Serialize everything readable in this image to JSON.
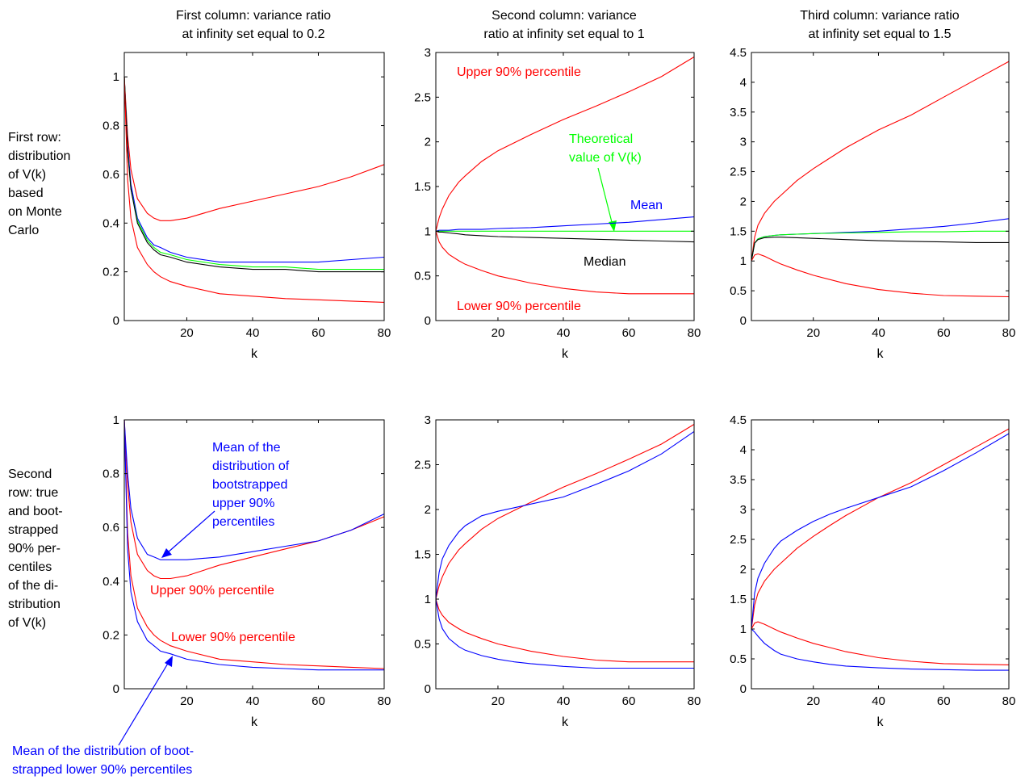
{
  "row_labels": [
    [
      "First row:",
      "distribution",
      "of V(k)",
      "based",
      "on Monte",
      "Carlo"
    ],
    [
      "Second",
      "row: true",
      "and boot-",
      "strapped",
      "90% per-",
      "centiles",
      "of the di-",
      "stribution",
      "of V(k)"
    ]
  ],
  "colors": {
    "red": "#ff0000",
    "blue": "#0000ff",
    "green": "#00ff00",
    "black": "#000000"
  },
  "chart_data": [
    {
      "type": "line",
      "row": 1,
      "col": 1,
      "title": [
        "First column: variance ratio",
        "at infinity set equal to 0.2"
      ],
      "xlabel": "k",
      "xlim": [
        1,
        80
      ],
      "ylim": [
        0,
        1.1
      ],
      "xticks": [
        20,
        40,
        60,
        80
      ],
      "yticks": [
        0,
        0.2,
        0.4,
        0.6,
        0.8,
        1
      ],
      "x": [
        1,
        2,
        3,
        5,
        8,
        10,
        12,
        15,
        20,
        30,
        40,
        50,
        60,
        70,
        80
      ],
      "series": [
        {
          "color": "red",
          "values": [
            1.0,
            0.76,
            0.62,
            0.5,
            0.44,
            0.42,
            0.41,
            0.41,
            0.42,
            0.46,
            0.49,
            0.52,
            0.55,
            0.59,
            0.64
          ]
        },
        {
          "color": "blue",
          "values": [
            1.0,
            0.72,
            0.56,
            0.42,
            0.34,
            0.31,
            0.3,
            0.28,
            0.26,
            0.24,
            0.24,
            0.24,
            0.24,
            0.25,
            0.26
          ]
        },
        {
          "color": "green",
          "values": [
            1.0,
            0.7,
            0.54,
            0.41,
            0.33,
            0.3,
            0.28,
            0.27,
            0.25,
            0.23,
            0.22,
            0.22,
            0.21,
            0.21,
            0.21
          ]
        },
        {
          "color": "black",
          "values": [
            1.0,
            0.7,
            0.54,
            0.4,
            0.32,
            0.29,
            0.27,
            0.26,
            0.24,
            0.22,
            0.21,
            0.21,
            0.2,
            0.2,
            0.2
          ]
        },
        {
          "color": "red",
          "values": [
            1.0,
            0.58,
            0.42,
            0.3,
            0.23,
            0.2,
            0.18,
            0.16,
            0.14,
            0.11,
            0.1,
            0.09,
            0.085,
            0.08,
            0.075
          ]
        }
      ],
      "annotations": []
    },
    {
      "type": "line",
      "row": 1,
      "col": 2,
      "title": [
        "Second column: variance",
        "ratio at infinity set equal to 1"
      ],
      "xlabel": "k",
      "xlim": [
        1,
        80
      ],
      "ylim": [
        0,
        3
      ],
      "xticks": [
        20,
        40,
        60,
        80
      ],
      "yticks": [
        0,
        0.5,
        1,
        1.5,
        2,
        2.5,
        3
      ],
      "x": [
        1,
        2,
        3,
        5,
        8,
        10,
        15,
        20,
        30,
        40,
        50,
        60,
        70,
        80
      ],
      "series": [
        {
          "color": "red",
          "values": [
            1.0,
            1.15,
            1.25,
            1.4,
            1.55,
            1.62,
            1.78,
            1.9,
            2.08,
            2.25,
            2.4,
            2.56,
            2.73,
            2.95
          ]
        },
        {
          "color": "blue",
          "values": [
            1.0,
            1.01,
            1.01,
            1.01,
            1.02,
            1.02,
            1.02,
            1.03,
            1.04,
            1.06,
            1.08,
            1.1,
            1.13,
            1.16
          ]
        },
        {
          "color": "green",
          "values": [
            1.0,
            1.0,
            1.0,
            1.0,
            1.0,
            1.0,
            1.0,
            1.0,
            1.0,
            1.0,
            1.0,
            1.0,
            1.0,
            1.0
          ]
        },
        {
          "color": "black",
          "values": [
            1.0,
            0.99,
            0.99,
            0.98,
            0.97,
            0.96,
            0.95,
            0.94,
            0.93,
            0.92,
            0.91,
            0.9,
            0.89,
            0.88
          ]
        },
        {
          "color": "red",
          "values": [
            1.0,
            0.88,
            0.82,
            0.74,
            0.67,
            0.63,
            0.56,
            0.5,
            0.42,
            0.36,
            0.32,
            0.3,
            0.3,
            0.3
          ]
        }
      ],
      "annotations": [
        {
          "text": "Upper 90% percentile",
          "color": "red"
        },
        {
          "text": "Theoretical",
          "color": "green"
        },
        {
          "text": "value of V(k)",
          "color": "green"
        },
        {
          "text": "Mean",
          "color": "blue"
        },
        {
          "text": "Median",
          "color": "black"
        },
        {
          "text": "Lower 90% percentile",
          "color": "red"
        }
      ]
    },
    {
      "type": "line",
      "row": 1,
      "col": 3,
      "title": [
        "Third column: variance ratio",
        "at infinity set equal to 1.5"
      ],
      "xlabel": "k",
      "xlim": [
        1,
        80
      ],
      "ylim": [
        0,
        4.5
      ],
      "xticks": [
        20,
        40,
        60,
        80
      ],
      "yticks": [
        0,
        0.5,
        1,
        1.5,
        2,
        2.5,
        3,
        3.5,
        4,
        4.5
      ],
      "x": [
        1,
        2,
        3,
        5,
        8,
        10,
        15,
        20,
        30,
        40,
        50,
        60,
        70,
        80
      ],
      "series": [
        {
          "color": "red",
          "values": [
            1.0,
            1.4,
            1.6,
            1.8,
            2.0,
            2.1,
            2.35,
            2.55,
            2.9,
            3.2,
            3.45,
            3.75,
            4.05,
            4.35
          ]
        },
        {
          "color": "blue",
          "values": [
            1.0,
            1.3,
            1.37,
            1.41,
            1.43,
            1.44,
            1.45,
            1.46,
            1.48,
            1.5,
            1.54,
            1.58,
            1.64,
            1.71
          ]
        },
        {
          "color": "green",
          "values": [
            1.0,
            1.3,
            1.37,
            1.41,
            1.43,
            1.44,
            1.45,
            1.46,
            1.47,
            1.48,
            1.49,
            1.49,
            1.5,
            1.5
          ]
        },
        {
          "color": "black",
          "values": [
            1.0,
            1.3,
            1.36,
            1.39,
            1.4,
            1.4,
            1.39,
            1.38,
            1.36,
            1.34,
            1.33,
            1.32,
            1.31,
            1.31
          ]
        },
        {
          "color": "red",
          "values": [
            1.0,
            1.1,
            1.12,
            1.08,
            1.0,
            0.95,
            0.85,
            0.76,
            0.62,
            0.52,
            0.46,
            0.42,
            0.41,
            0.4
          ]
        }
      ],
      "annotations": []
    },
    {
      "type": "line",
      "row": 2,
      "col": 1,
      "title": [],
      "xlabel": "k",
      "xlim": [
        1,
        80
      ],
      "ylim": [
        0,
        1
      ],
      "xticks": [
        20,
        40,
        60,
        80
      ],
      "yticks": [
        0,
        0.2,
        0.4,
        0.6,
        0.8,
        1
      ],
      "x": [
        1,
        2,
        3,
        5,
        8,
        10,
        12,
        15,
        20,
        30,
        40,
        50,
        60,
        70,
        80
      ],
      "series": [
        {
          "color": "red",
          "values": [
            1.0,
            0.76,
            0.62,
            0.5,
            0.44,
            0.42,
            0.41,
            0.41,
            0.42,
            0.46,
            0.49,
            0.52,
            0.55,
            0.59,
            0.64
          ]
        },
        {
          "color": "blue",
          "values": [
            1.0,
            0.8,
            0.67,
            0.56,
            0.5,
            0.49,
            0.48,
            0.48,
            0.48,
            0.49,
            0.51,
            0.53,
            0.55,
            0.59,
            0.65
          ]
        },
        {
          "color": "red",
          "values": [
            1.0,
            0.58,
            0.42,
            0.3,
            0.23,
            0.2,
            0.18,
            0.16,
            0.14,
            0.11,
            0.1,
            0.09,
            0.085,
            0.08,
            0.075
          ]
        },
        {
          "color": "blue",
          "values": [
            1.0,
            0.52,
            0.36,
            0.25,
            0.18,
            0.16,
            0.14,
            0.13,
            0.11,
            0.09,
            0.08,
            0.075,
            0.07,
            0.07,
            0.07
          ]
        }
      ],
      "annotations": [
        {
          "text": "Mean of the",
          "color": "blue"
        },
        {
          "text": "distribution of",
          "color": "blue"
        },
        {
          "text": "bootstrapped",
          "color": "blue"
        },
        {
          "text": "upper 90%",
          "color": "blue"
        },
        {
          "text": "percentiles",
          "color": "blue"
        },
        {
          "text": "Upper 90% percentile",
          "color": "red"
        },
        {
          "text": "Lower 90% percentile",
          "color": "red"
        },
        {
          "text": "Mean of the distribution of boot-",
          "color": "blue"
        },
        {
          "text": "strapped lower 90% percentiles",
          "color": "blue"
        }
      ]
    },
    {
      "type": "line",
      "row": 2,
      "col": 2,
      "title": [],
      "xlabel": "k",
      "xlim": [
        1,
        80
      ],
      "ylim": [
        0,
        3
      ],
      "xticks": [
        20,
        40,
        60,
        80
      ],
      "yticks": [
        0,
        0.5,
        1,
        1.5,
        2,
        2.5,
        3
      ],
      "x": [
        1,
        2,
        3,
        5,
        8,
        10,
        15,
        20,
        25,
        30,
        40,
        50,
        60,
        70,
        80
      ],
      "series": [
        {
          "color": "red",
          "values": [
            1.0,
            1.15,
            1.25,
            1.4,
            1.55,
            1.62,
            1.78,
            1.9,
            1.99,
            2.08,
            2.25,
            2.4,
            2.56,
            2.73,
            2.95
          ]
        },
        {
          "color": "blue",
          "values": [
            1.0,
            1.3,
            1.45,
            1.6,
            1.75,
            1.82,
            1.93,
            1.98,
            2.02,
            2.06,
            2.14,
            2.28,
            2.43,
            2.62,
            2.87
          ]
        },
        {
          "color": "red",
          "values": [
            1.0,
            0.88,
            0.82,
            0.74,
            0.67,
            0.63,
            0.56,
            0.5,
            0.46,
            0.42,
            0.36,
            0.32,
            0.3,
            0.3,
            0.3
          ]
        },
        {
          "color": "blue",
          "values": [
            1.0,
            0.78,
            0.67,
            0.56,
            0.47,
            0.43,
            0.37,
            0.33,
            0.3,
            0.28,
            0.25,
            0.23,
            0.23,
            0.23,
            0.23
          ]
        }
      ],
      "annotations": []
    },
    {
      "type": "line",
      "row": 2,
      "col": 3,
      "title": [],
      "xlabel": "k",
      "xlim": [
        1,
        80
      ],
      "ylim": [
        0,
        4.5
      ],
      "xticks": [
        20,
        40,
        60,
        80
      ],
      "yticks": [
        0,
        0.5,
        1,
        1.5,
        2,
        2.5,
        3,
        3.5,
        4,
        4.5
      ],
      "x": [
        1,
        2,
        3,
        5,
        8,
        10,
        15,
        20,
        25,
        30,
        40,
        50,
        60,
        70,
        80
      ],
      "series": [
        {
          "color": "red",
          "values": [
            1.0,
            1.4,
            1.6,
            1.8,
            2.0,
            2.1,
            2.35,
            2.55,
            2.73,
            2.9,
            3.2,
            3.45,
            3.75,
            4.05,
            4.35
          ]
        },
        {
          "color": "blue",
          "values": [
            1.0,
            1.6,
            1.85,
            2.1,
            2.35,
            2.47,
            2.65,
            2.8,
            2.92,
            3.02,
            3.2,
            3.38,
            3.65,
            3.95,
            4.27
          ]
        },
        {
          "color": "red",
          "values": [
            1.0,
            1.1,
            1.12,
            1.08,
            1.0,
            0.95,
            0.85,
            0.76,
            0.69,
            0.62,
            0.52,
            0.46,
            0.42,
            0.41,
            0.4
          ]
        },
        {
          "color": "blue",
          "values": [
            1.0,
            0.95,
            0.88,
            0.76,
            0.64,
            0.58,
            0.5,
            0.45,
            0.41,
            0.38,
            0.35,
            0.33,
            0.32,
            0.31,
            0.31
          ]
        }
      ],
      "annotations": []
    }
  ]
}
